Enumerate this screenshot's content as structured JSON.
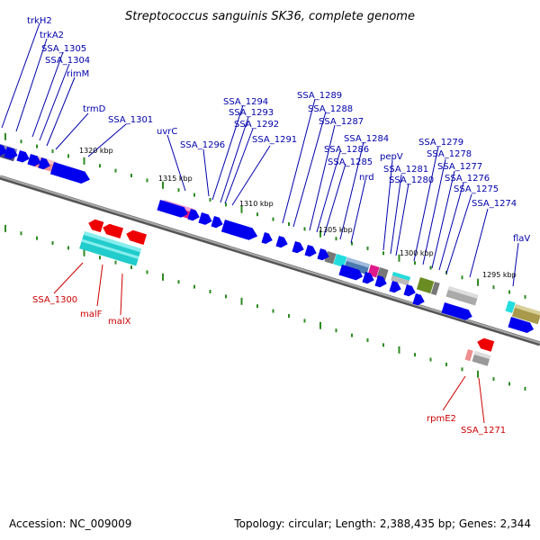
{
  "header": {
    "title": "Streptococcus sanguinis SK36, complete genome"
  },
  "footer": {
    "accession": "Accession: NC_009009",
    "topology": "Topology: circular; Length: 2,388,435 bp; Genes: 2,344"
  },
  "colors": {
    "gene_forward": "#0000ee",
    "gene_reverse": "#ee0000",
    "backbone": "#777777",
    "tick": "#2e8b22",
    "label_blue": "#0000aa",
    "label_red": "#cc0000"
  },
  "scale_labels": [
    {
      "text": "1320 kbp"
    },
    {
      "text": "1315 kbp"
    },
    {
      "text": "1310 kbp"
    },
    {
      "text": "1305 kbp"
    },
    {
      "text": "1300 kbp"
    },
    {
      "text": "1295 kbp"
    }
  ],
  "gene_labels": [
    {
      "text": "trkH2",
      "strand": "forward"
    },
    {
      "text": "trkA2",
      "strand": "forward"
    },
    {
      "text": "SSA_1305",
      "strand": "forward"
    },
    {
      "text": "SSA_1304",
      "strand": "forward"
    },
    {
      "text": "rimM",
      "strand": "forward"
    },
    {
      "text": "trmD",
      "strand": "forward"
    },
    {
      "text": "SSA_1301",
      "strand": "forward"
    },
    {
      "text": "uvrC",
      "strand": "forward"
    },
    {
      "text": "SSA_1296",
      "strand": "forward"
    },
    {
      "text": "SSA_1294",
      "strand": "forward"
    },
    {
      "text": "SSA_1293",
      "strand": "forward"
    },
    {
      "text": "SSA_1292",
      "strand": "forward"
    },
    {
      "text": "SSA_1291",
      "strand": "forward"
    },
    {
      "text": "SSA_1289",
      "strand": "forward"
    },
    {
      "text": "SSA_1288",
      "strand": "forward"
    },
    {
      "text": "SSA_1287",
      "strand": "forward"
    },
    {
      "text": "SSA_1286",
      "strand": "forward"
    },
    {
      "text": "SSA_1285",
      "strand": "forward"
    },
    {
      "text": "SSA_1284",
      "strand": "forward"
    },
    {
      "text": "nrd",
      "strand": "forward"
    },
    {
      "text": "pepV",
      "strand": "forward"
    },
    {
      "text": "SSA_1281",
      "strand": "forward"
    },
    {
      "text": "SSA_1280",
      "strand": "forward"
    },
    {
      "text": "SSA_1279",
      "strand": "forward"
    },
    {
      "text": "SSA_1278",
      "strand": "forward"
    },
    {
      "text": "SSA_1277",
      "strand": "forward"
    },
    {
      "text": "SSA_1276",
      "strand": "forward"
    },
    {
      "text": "SSA_1275",
      "strand": "forward"
    },
    {
      "text": "SSA_1274",
      "strand": "forward"
    },
    {
      "text": "flaV",
      "strand": "forward"
    },
    {
      "text": "SSA_1300",
      "strand": "reverse"
    },
    {
      "text": "malF",
      "strand": "reverse"
    },
    {
      "text": "malX",
      "strand": "reverse"
    },
    {
      "text": "rpmE2",
      "strand": "reverse"
    },
    {
      "text": "SSA_1271",
      "strand": "reverse"
    }
  ]
}
